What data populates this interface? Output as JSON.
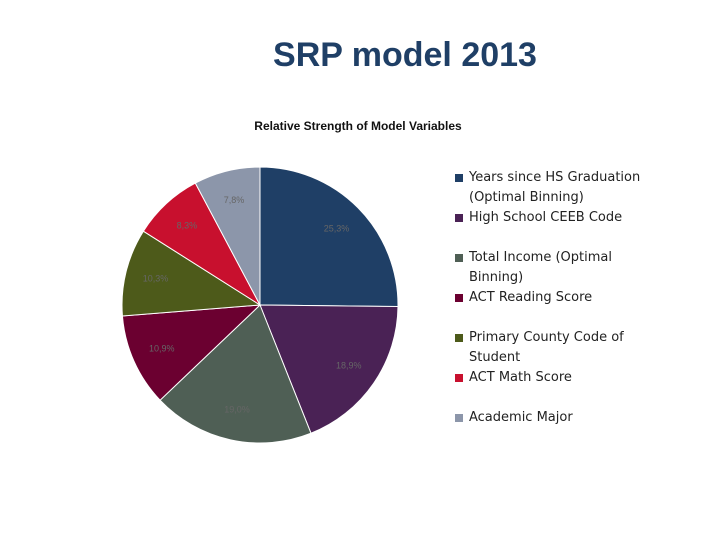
{
  "chart_data": {
    "type": "pie",
    "title": "SRP model 2013",
    "subtitle": "Relative Strength of Model Variables",
    "categories": [
      "Years since HS Graduation (Optimal Binning)",
      "High School CEEB Code",
      "Total Income (Optimal Binning)",
      "ACT Reading Score",
      "Primary County Code of Student",
      "ACT Math Score",
      "Academic Major"
    ],
    "values": [
      25.3,
      18.9,
      19.0,
      10.9,
      10.3,
      8.3,
      7.8
    ],
    "value_labels": [
      "25,3%",
      "18,9%",
      "19,0%",
      "10,9%",
      "10,3%",
      "8,3%",
      "7,8%"
    ],
    "colors": [
      "#1f3f66",
      "#4a2255",
      "#4f5f55",
      "#6b0030",
      "#4d5a1a",
      "#c8102e",
      "#8c96aa"
    ],
    "legend": "right"
  }
}
